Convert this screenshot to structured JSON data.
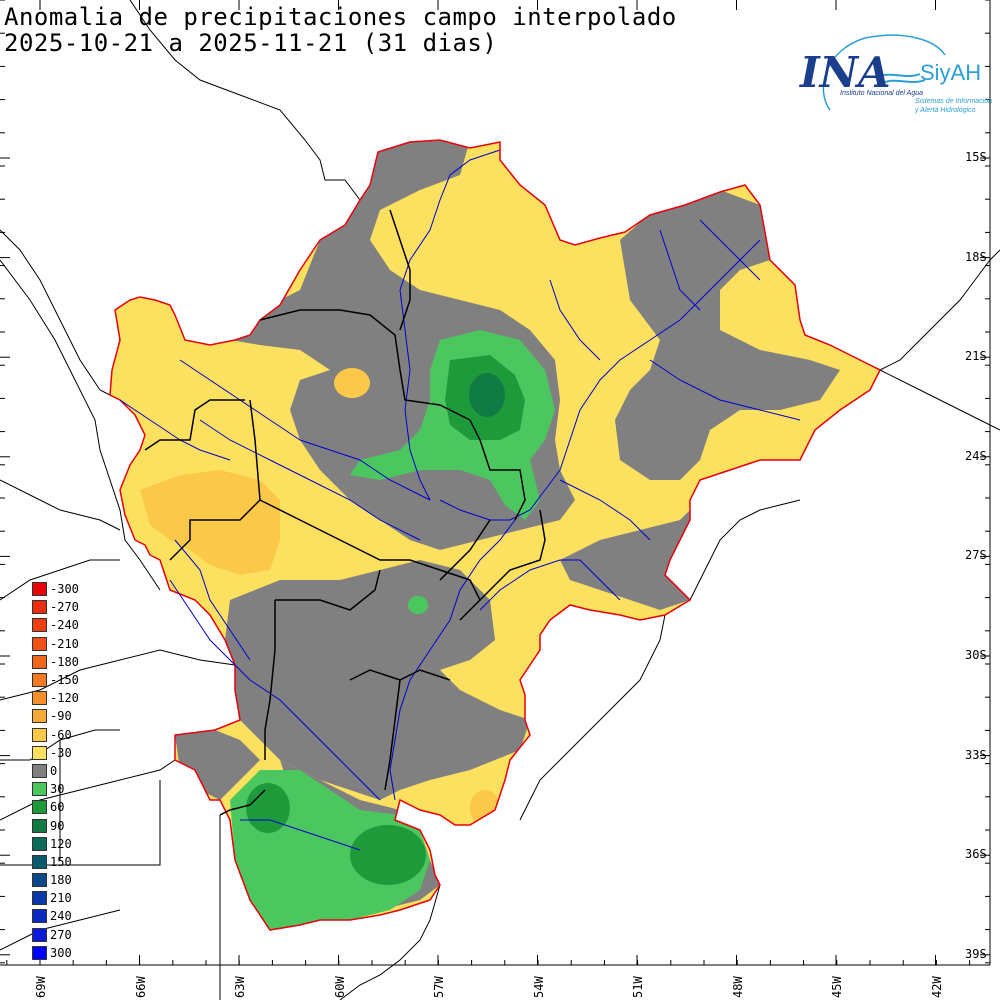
{
  "header": {
    "title_line1": "Anomalia de precipitaciones campo interpolado",
    "title_line2": "2025-10-21 a 2025-11-21 (31 dias)"
  },
  "logo": {
    "ina": "INA",
    "siyah": "SiyAH",
    "sub1": "Instituto Nacional del Agua",
    "sub2": "Sistemas de Información",
    "sub3": "y Alerta Hidrológico",
    "colors": {
      "ina": "#1a3e8c",
      "siyah": "#2a9fd6"
    }
  },
  "legend": {
    "items": [
      {
        "label": "-300",
        "color": "#e8000b"
      },
      {
        "label": "-270",
        "color": "#ec2a0e"
      },
      {
        "label": "-240",
        "color": "#ef3d12"
      },
      {
        "label": "-210",
        "color": "#f05216"
      },
      {
        "label": "-180",
        "color": "#f2661b"
      },
      {
        "label": "-150",
        "color": "#f47a22"
      },
      {
        "label": "-120",
        "color": "#f68f2b"
      },
      {
        "label": "-90",
        "color": "#f8a836"
      },
      {
        "label": "-60",
        "color": "#fbc84a"
      },
      {
        "label": "-30",
        "color": "#fce060"
      },
      {
        "label": "0",
        "color": "#808080"
      },
      {
        "label": "30",
        "color": "#4cc760"
      },
      {
        "label": "60",
        "color": "#1e9a3a"
      },
      {
        "label": "90",
        "color": "#107a45"
      },
      {
        "label": "120",
        "color": "#0d6a5a"
      },
      {
        "label": "150",
        "color": "#0a5a6e"
      },
      {
        "label": "180",
        "color": "#0a4a8c"
      },
      {
        "label": "210",
        "color": "#0a3aa8"
      },
      {
        "label": "240",
        "color": "#0a2ac0"
      },
      {
        "label": "270",
        "color": "#0a1ad8"
      },
      {
        "label": "300",
        "color": "#0000ff"
      }
    ]
  },
  "axes": {
    "lat_labels": [
      "15S",
      "18S",
      "21S",
      "24S",
      "27S",
      "30S",
      "33S",
      "36S",
      "39S"
    ],
    "lon_labels": [
      "69W",
      "66W",
      "63W",
      "60W",
      "57W",
      "54W",
      "51W",
      "48W",
      "45W",
      "42W"
    ]
  },
  "colors": {
    "gray": "#808080",
    "yellow": "#fce060",
    "orange": "#fbc84a",
    "green_light": "#4cc760",
    "green_dark": "#1e9a3a",
    "green_teal": "#107a45",
    "basin_border": "#e8000b",
    "rivers": "#0000d0",
    "borders": "#000000"
  }
}
